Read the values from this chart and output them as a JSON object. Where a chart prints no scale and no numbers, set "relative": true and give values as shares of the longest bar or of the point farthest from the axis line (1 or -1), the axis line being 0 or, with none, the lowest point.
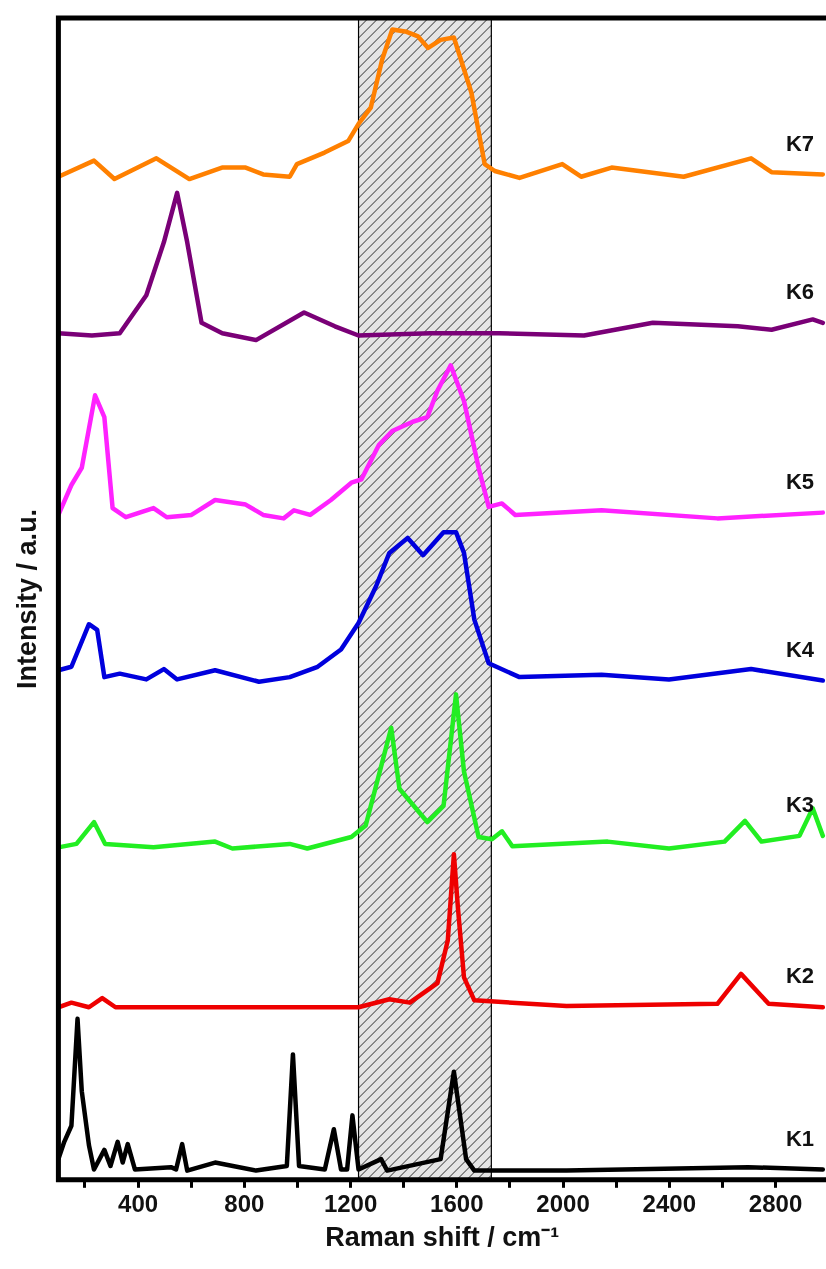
{
  "chart_data": {
    "type": "line",
    "xlabel": "Raman shift / cm⁻¹",
    "ylabel": "Intensity / a.u.",
    "relative": true,
    "marker": "none",
    "line_style": "solid",
    "grid": false,
    "xlim": [
      100,
      2990
    ],
    "xticks": [
      {
        "value": 200,
        "label": null
      },
      400,
      {
        "value": 600,
        "label": null
      },
      800,
      {
        "value": 1000,
        "label": null
      },
      1200,
      {
        "value": 1400,
        "label": null
      },
      1600,
      {
        "value": 1800,
        "label": null
      },
      2000,
      {
        "value": 2200,
        "label": null
      },
      2400,
      {
        "value": 2600,
        "label": null
      },
      2800
    ],
    "bands": [
      {
        "axis": "x",
        "from": 1230,
        "to": 1730,
        "color": "#000000"
      }
    ],
    "series": [
      {
        "name": "K1",
        "color": "#000000",
        "x": [
          100,
          122,
          149,
          172,
          188,
          215,
          234,
          273,
          296,
          323,
          342,
          361,
          388,
          524,
          543,
          566,
          585,
          690,
          844,
          960,
          983,
          1006,
          1103,
          1137,
          1164,
          1187,
          1207,
          1230,
          1315,
          1338,
          1539,
          1589,
          1635,
          1666,
          2013,
          2697,
          2978
        ],
        "values": [
          0.018,
          0.033,
          0.047,
          0.14,
          0.077,
          0.03,
          0.009,
          0.026,
          0.012,
          0.033,
          0.015,
          0.031,
          0.009,
          0.011,
          0.009,
          0.031,
          0.008,
          0.015,
          0.008,
          0.012,
          0.109,
          0.012,
          0.009,
          0.044,
          0.009,
          0.009,
          0.056,
          0.009,
          0.018,
          0.008,
          0.018,
          0.094,
          0.018,
          0.008,
          0.008,
          0.011,
          0.009
        ]
      },
      {
        "name": "K2",
        "color": "#ee0000",
        "x": [
          100,
          149,
          215,
          265,
          315,
          1230,
          1346,
          1423,
          1527,
          1566,
          1589,
          1604,
          1627,
          1666,
          2013,
          2581,
          2670,
          2774,
          2978
        ],
        "values": [
          0.15,
          0.154,
          0.15,
          0.158,
          0.15,
          0.15,
          0.157,
          0.154,
          0.171,
          0.208,
          0.283,
          0.237,
          0.176,
          0.156,
          0.151,
          0.153,
          0.179,
          0.153,
          0.15
        ]
      },
      {
        "name": "K3",
        "color": "#22ee22",
        "x": [
          100,
          168,
          234,
          276,
          458,
          690,
          755,
          971,
          1037,
          1203,
          1230,
          1257,
          1353,
          1384,
          1489,
          1550,
          1597,
          1627,
          1682,
          1732,
          1770,
          1809,
          2168,
          2399,
          2608,
          2685,
          2747,
          2890,
          2940,
          2978
        ],
        "values": [
          0.289,
          0.292,
          0.311,
          0.292,
          0.289,
          0.294,
          0.288,
          0.292,
          0.288,
          0.298,
          0.303,
          0.308,
          0.393,
          0.34,
          0.311,
          0.325,
          0.422,
          0.355,
          0.298,
          0.296,
          0.303,
          0.29,
          0.294,
          0.288,
          0.294,
          0.312,
          0.294,
          0.299,
          0.323,
          0.299
        ]
      },
      {
        "name": "K4",
        "color": "#0000dd",
        "x": [
          100,
          149,
          215,
          246,
          273,
          331,
          431,
          497,
          547,
          690,
          855,
          971,
          1076,
          1164,
          1230,
          1296,
          1346,
          1415,
          1473,
          1550,
          1597,
          1627,
          1666,
          1720,
          1836,
          2145,
          2399,
          2708,
          2978
        ],
        "values": [
          0.443,
          0.446,
          0.483,
          0.478,
          0.437,
          0.44,
          0.435,
          0.444,
          0.435,
          0.443,
          0.433,
          0.437,
          0.446,
          0.461,
          0.484,
          0.516,
          0.545,
          0.558,
          0.543,
          0.563,
          0.563,
          0.545,
          0.487,
          0.449,
          0.437,
          0.439,
          0.435,
          0.444,
          0.434
        ]
      },
      {
        "name": "K5",
        "color": "#ff22ff",
        "x": [
          100,
          149,
          188,
          238,
          273,
          304,
          354,
          458,
          508,
          601,
          690,
          805,
          871,
          948,
          987,
          1048,
          1126,
          1203,
          1241,
          1307,
          1357,
          1434,
          1489,
          1527,
          1577,
          1627,
          1682,
          1720,
          1770,
          1820,
          2145,
          2581,
          2978
        ],
        "values": [
          0.578,
          0.604,
          0.619,
          0.682,
          0.663,
          0.584,
          0.576,
          0.584,
          0.576,
          0.578,
          0.591,
          0.587,
          0.578,
          0.575,
          0.582,
          0.578,
          0.591,
          0.606,
          0.609,
          0.639,
          0.651,
          0.659,
          0.663,
          0.686,
          0.708,
          0.677,
          0.619,
          0.585,
          0.588,
          0.578,
          0.582,
          0.575,
          0.58
        ]
      },
      {
        "name": "K6",
        "color": "#7a0077",
        "x": [
          100,
          226,
          331,
          431,
          497,
          547,
          585,
          639,
          717,
          844,
          1025,
          1141,
          1230,
          1500,
          1759,
          2079,
          2338,
          2658,
          2785,
          2940,
          2978
        ],
        "values": [
          0.736,
          0.734,
          0.736,
          0.769,
          0.815,
          0.858,
          0.815,
          0.745,
          0.736,
          0.73,
          0.754,
          0.742,
          0.734,
          0.736,
          0.736,
          0.734,
          0.745,
          0.742,
          0.739,
          0.748,
          0.745
        ]
      },
      {
        "name": "K7",
        "color": "#ff8000",
        "x": [
          100,
          234,
          311,
          469,
          593,
          716,
          805,
          871,
          971,
          998,
          1102,
          1191,
          1230,
          1276,
          1319,
          1357,
          1411,
          1454,
          1492,
          1539,
          1589,
          1655,
          1705,
          1743,
          1836,
          1997,
          2068,
          2183,
          2454,
          2708,
          2785,
          2978
        ],
        "values": [
          0.872,
          0.886,
          0.87,
          0.888,
          0.87,
          0.88,
          0.88,
          0.874,
          0.872,
          0.883,
          0.893,
          0.903,
          0.918,
          0.932,
          0.974,
          1,
          0.998,
          0.994,
          0.984,
          0.991,
          0.993,
          0.945,
          0.883,
          0.877,
          0.871,
          0.883,
          0.872,
          0.88,
          0.872,
          0.888,
          0.876,
          0.874
        ]
      }
    ]
  }
}
